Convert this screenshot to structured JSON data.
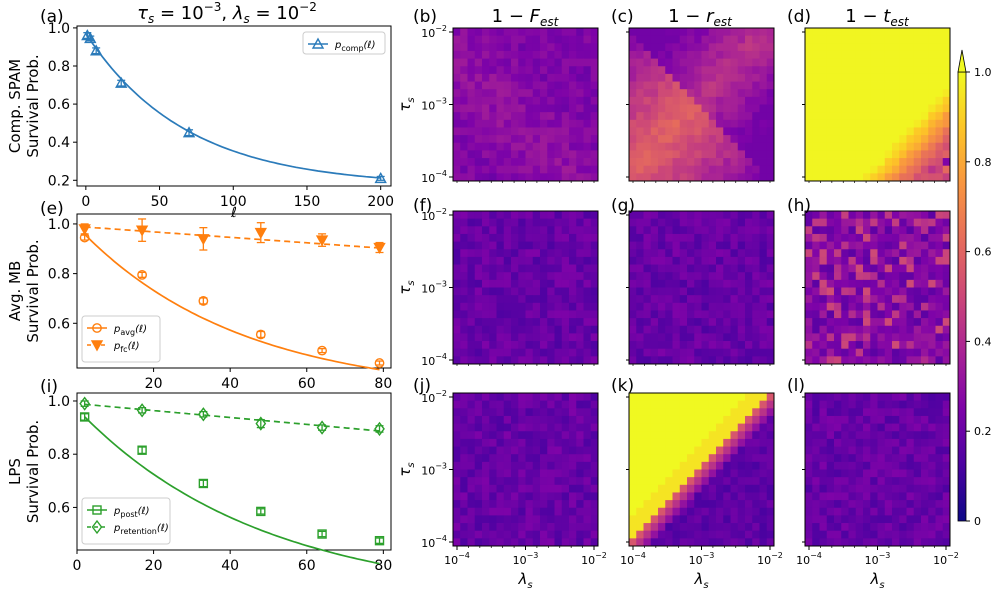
{
  "colors": {
    "blue": "#2b7bba",
    "orange": "#ff7f0e",
    "green": "#2ca02c"
  },
  "chart_data": [
    {
      "id": "a",
      "type": "line",
      "panel_label": "(a)",
      "title": "τs = 10⁻³, λs = 10⁻²",
      "title_parts": {
        "tau": "τ",
        "sub_s": "s",
        "eq1": " = 10",
        "exp1": "−3",
        "comma": ", ",
        "lam": "λ",
        "eq2": " = 10",
        "exp2": "−2"
      },
      "ylabel_lines": [
        "Comp. SPAM",
        "Survival Prob."
      ],
      "xlabel": "ℓ",
      "xlim": [
        -6,
        207
      ],
      "ylim": [
        0.17,
        1.01
      ],
      "xticks": [
        0,
        50,
        100,
        150,
        200
      ],
      "yticks": [
        0.2,
        0.4,
        0.6,
        0.8,
        1.0
      ],
      "ytick_labels": [
        "0.2",
        "0.4",
        "0.6",
        "0.8",
        "1.0"
      ],
      "legend_position": "top-right",
      "series": [
        {
          "name": "p_comp(ℓ)",
          "legend_text": "p",
          "legend_sub": "comp",
          "legend_arg": "(ℓ)",
          "marker": "triangle",
          "color_key": "blue",
          "x": [
            1,
            3,
            7,
            24,
            70,
            200
          ],
          "y": [
            0.96,
            0.945,
            0.88,
            0.71,
            0.45,
            0.21
          ],
          "yerr": [
            0.015,
            0.012,
            0.015,
            0.015,
            0.015,
            0.01
          ],
          "fit": {
            "a": 0.8,
            "tau": 68,
            "b": 0.17
          }
        }
      ]
    },
    {
      "id": "e",
      "type": "line",
      "panel_label": "(e)",
      "ylabel_lines": [
        "Avg. MB",
        "Survival Prob."
      ],
      "xlim": [
        0,
        82
      ],
      "ylim": [
        0.42,
        1.04
      ],
      "xticks": [
        20,
        40,
        60,
        80
      ],
      "yticks": [
        0.6,
        0.8,
        1.0
      ],
      "ytick_labels": [
        "0.6",
        "0.8",
        "1.0"
      ],
      "legend_position": "bottom-left",
      "series": [
        {
          "name": "p_avg(ℓ)",
          "legend_text": "p",
          "legend_sub": "avg",
          "legend_arg": "(ℓ)",
          "marker": "circle",
          "dashed": false,
          "color_key": "orange",
          "x": [
            2,
            17,
            33,
            48,
            64,
            79
          ],
          "y": [
            0.945,
            0.795,
            0.69,
            0.555,
            0.49,
            0.44
          ],
          "yerr": [
            0.01,
            0.01,
            0.012,
            0.012,
            0.008,
            0.008
          ],
          "fit": {
            "a": 0.68,
            "tau": 42,
            "b": 0.31
          }
        },
        {
          "name": "p_fc(ℓ)",
          "legend_text": "p",
          "legend_sub": "fc",
          "legend_arg": "(ℓ)",
          "marker": "tri_down",
          "dashed": true,
          "color_key": "orange",
          "x": [
            2,
            17,
            33,
            48,
            64,
            79
          ],
          "y": [
            0.98,
            0.975,
            0.94,
            0.965,
            0.935,
            0.905
          ],
          "yerr": [
            0.02,
            0.045,
            0.045,
            0.04,
            0.025,
            0.02
          ],
          "fit": {
            "a": 0.99,
            "b": 0.0011
          }
        }
      ]
    },
    {
      "id": "i",
      "type": "line",
      "panel_label": "(i)",
      "ylabel_lines": [
        "LPS",
        "Survival Prob."
      ],
      "xlim": [
        0,
        82
      ],
      "ylim": [
        0.44,
        1.03
      ],
      "xticks": [
        0,
        20,
        40,
        60,
        80
      ],
      "yticks": [
        0.6,
        0.8,
        1.0
      ],
      "ytick_labels": [
        "0.6",
        "0.8",
        "1.0"
      ],
      "legend_position": "bottom-left",
      "series": [
        {
          "name": "p_post(ℓ)",
          "legend_text": "p",
          "legend_sub": "post",
          "legend_arg": "(ℓ)",
          "marker": "square",
          "dashed": false,
          "color_key": "green",
          "x": [
            2,
            17,
            33,
            48,
            64,
            79
          ],
          "y": [
            0.94,
            0.815,
            0.69,
            0.585,
            0.5,
            0.475
          ],
          "yerr": [
            0.012,
            0.012,
            0.012,
            0.01,
            0.01,
            0.01
          ],
          "fit": {
            "a": 0.72,
            "tau": 48,
            "b": 0.25
          }
        },
        {
          "name": "p_retention(ℓ)",
          "legend_text": "p",
          "legend_sub": "retention",
          "legend_arg": "(ℓ)",
          "marker": "diamond",
          "dashed": true,
          "color_key": "green",
          "x": [
            2,
            17,
            33,
            48,
            64,
            79
          ],
          "y": [
            0.99,
            0.965,
            0.95,
            0.915,
            0.9,
            0.895
          ],
          "yerr": [
            0.01,
            0.01,
            0.01,
            0.015,
            0.01,
            0.012
          ],
          "fit": {
            "a": 0.99,
            "b": 0.0013
          }
        }
      ]
    },
    {
      "id": "heatmaps",
      "type": "heatmap",
      "grid_size": 20,
      "col_titles": {
        "b": {
          "pre": "1 − ",
          "var": "F",
          "sub": "est"
        },
        "c": {
          "pre": "1 − ",
          "var": "r",
          "sub": "est"
        },
        "d": {
          "pre": "1 − ",
          "var": "t",
          "sub": "est"
        }
      },
      "panels": [
        {
          "id": "b",
          "label": "(b)",
          "pattern": "F",
          "row": 0,
          "col": 0
        },
        {
          "id": "c",
          "label": "(c)",
          "pattern": "r",
          "row": 0,
          "col": 1
        },
        {
          "id": "d",
          "label": "(d)",
          "pattern": "t",
          "row": 0,
          "col": 2
        },
        {
          "id": "f",
          "label": "(f)",
          "pattern": "lowF",
          "row": 1,
          "col": 0
        },
        {
          "id": "g",
          "label": "(g)",
          "pattern": "lowF",
          "row": 1,
          "col": 1
        },
        {
          "id": "h",
          "label": "(h)",
          "pattern": "noisy",
          "row": 1,
          "col": 2
        },
        {
          "id": "j",
          "label": "(j)",
          "pattern": "lowF",
          "row": 2,
          "col": 0
        },
        {
          "id": "k",
          "label": "(k)",
          "pattern": "k",
          "row": 2,
          "col": 1
        },
        {
          "id": "l",
          "label": "(l)",
          "pattern": "lowF",
          "row": 2,
          "col": 2
        }
      ],
      "xlabel": {
        "var": "λ",
        "sub": "s"
      },
      "ylabel": {
        "var": "τ",
        "sub": "s"
      },
      "x_ticks": [
        {
          "base": "10",
          "exp": "−4"
        },
        {
          "base": "10",
          "exp": "−3"
        },
        {
          "base": "10",
          "exp": "−2"
        }
      ],
      "y_ticks": [
        {
          "base": "10",
          "exp": "−2"
        },
        {
          "base": "10",
          "exp": "−3"
        },
        {
          "base": "10",
          "exp": "−4"
        }
      ],
      "colorbar": {
        "min": 0,
        "max": 1.0,
        "ticks": [
          0,
          0.2,
          0.4,
          0.6,
          0.8,
          1.0
        ],
        "tick_labels": [
          "0",
          "0.2",
          "0.4",
          "0.6",
          "0.8",
          "1.0"
        ],
        "colormap": "plasma",
        "extend": "max"
      }
    }
  ]
}
